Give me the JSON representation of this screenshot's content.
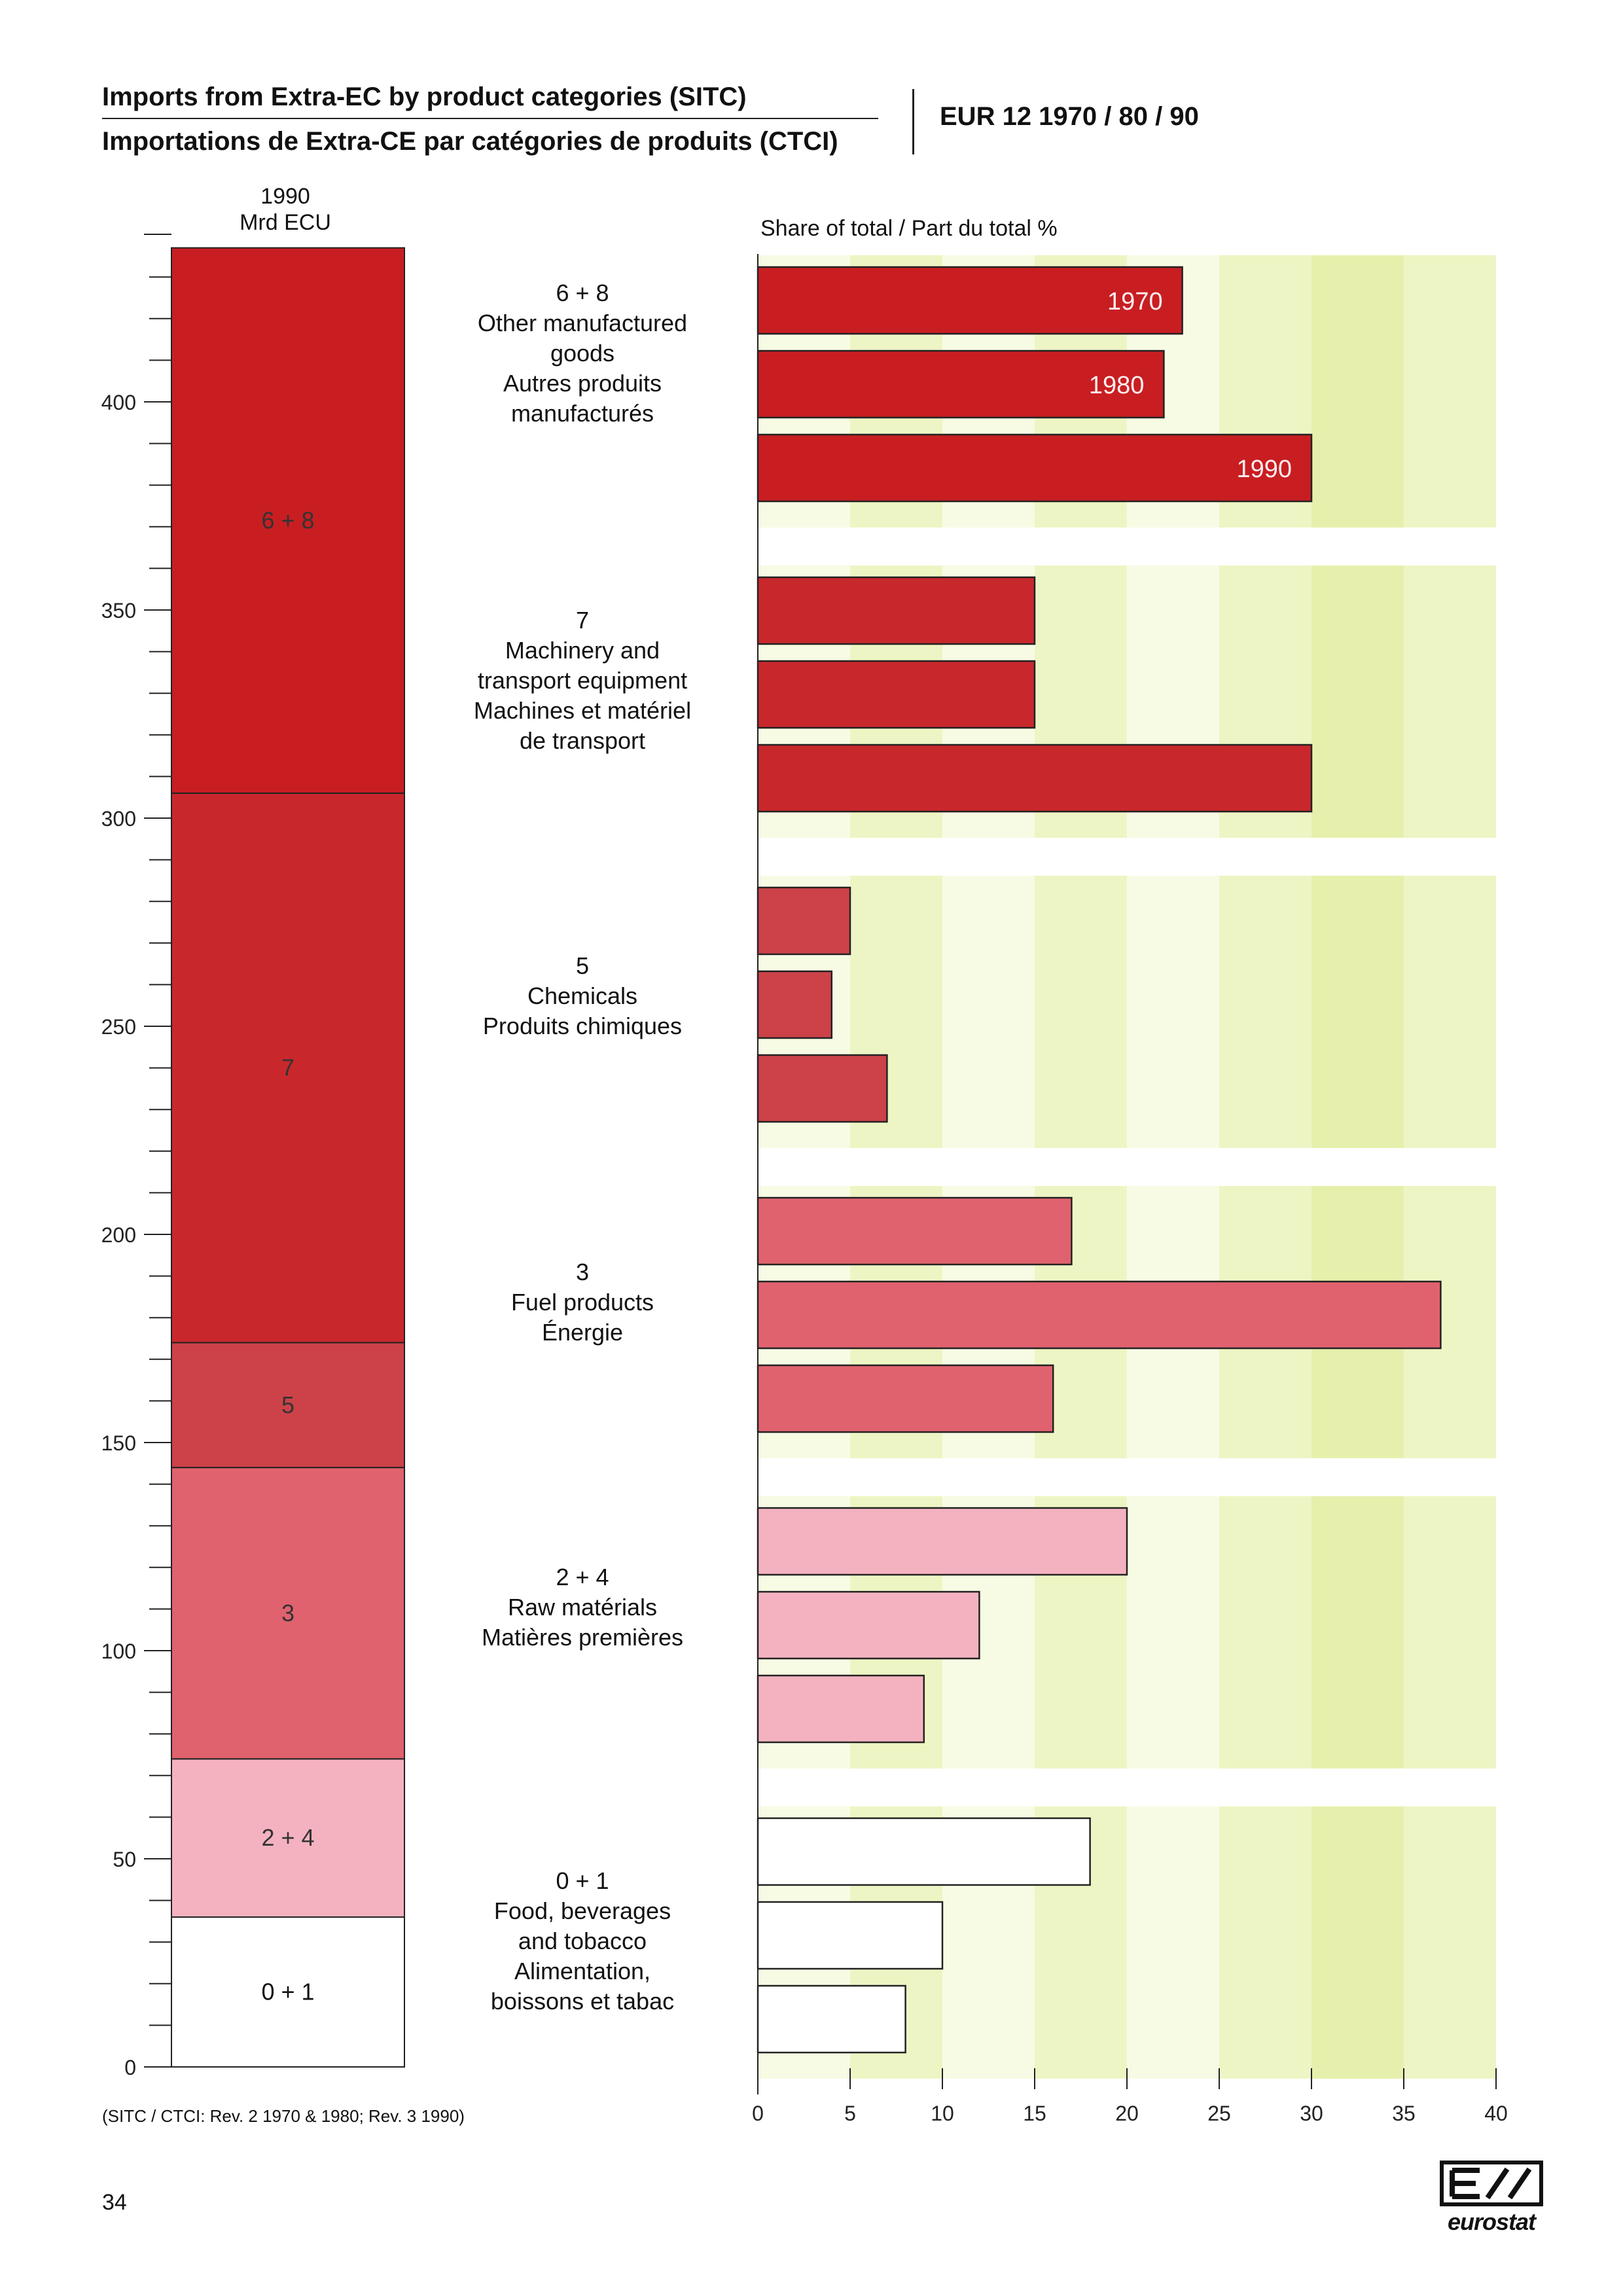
{
  "header": {
    "title_en": "Imports from Extra-EC by product categories (SITC)",
    "title_fr": "Importations de Extra-CE par catégories de produits (CTCI)",
    "series": "EUR 12  1970 / 80 / 90"
  },
  "stack_heading": {
    "line1": "1990",
    "line2": "Mrd ECU"
  },
  "bars_heading": "Share of total / Part du total  %",
  "footnote": "(SITC / CTCI: Rev. 2 1970 & 1980; Rev. 3 1990)",
  "page_number": "34",
  "logo_text": "eurostat",
  "colors": {
    "6+8": "#c81e22",
    "7": "#c8282c",
    "5": "#cc4248",
    "3": "#e0626e",
    "2+4": "#f4b2c0",
    "0+1": "#ffffff",
    "band_light": "#f8fbe4",
    "band_mid": "#eef5c4",
    "band_strong": "#e6f0ac"
  },
  "categories": [
    {
      "key": "6+8",
      "code": "6 + 8",
      "lines": [
        "Other manufactured",
        "goods",
        "Autres produits",
        "manufacturés"
      ]
    },
    {
      "key": "7",
      "code": "7",
      "lines": [
        "Machinery and",
        "transport equipment",
        "Machines et matériel",
        "de transport"
      ]
    },
    {
      "key": "5",
      "code": "5",
      "lines": [
        "Chemicals",
        "Produits chimiques"
      ]
    },
    {
      "key": "3",
      "code": "3",
      "lines": [
        "Fuel products",
        "Énergie"
      ]
    },
    {
      "key": "2+4",
      "code": "2 + 4",
      "lines": [
        "Raw matérials",
        "Matières premières"
      ]
    },
    {
      "key": "0+1",
      "code": "0 + 1",
      "lines": [
        "Food, beverages",
        "and tobacco",
        "Alimentation,",
        "boissons et tabac"
      ]
    }
  ],
  "chart_data": [
    {
      "type": "bar",
      "stacked": true,
      "ylabel": "Mrd ECU",
      "ylim": [
        0,
        437
      ],
      "yticks": [
        0,
        50,
        100,
        150,
        200,
        250,
        300,
        350,
        400
      ],
      "segments": [
        {
          "category": "0 + 1",
          "value": 36
        },
        {
          "category": "2 + 4",
          "value": 38
        },
        {
          "category": "3",
          "value": 70
        },
        {
          "category": "5",
          "value": 30
        },
        {
          "category": "7",
          "value": 132
        },
        {
          "category": "6 + 8",
          "value": 131
        }
      ]
    },
    {
      "type": "bar",
      "orientation": "horizontal",
      "xlabel": "Share of total / Part du total  %",
      "xlim": [
        0,
        40
      ],
      "xticks": [
        0,
        5,
        10,
        15,
        20,
        25,
        30,
        35,
        40
      ],
      "series_labels": [
        "1970",
        "1980",
        "1990"
      ],
      "groups": [
        {
          "category": "6 + 8",
          "values": [
            23,
            22,
            30
          ]
        },
        {
          "category": "7",
          "values": [
            15,
            15,
            30
          ]
        },
        {
          "category": "5",
          "values": [
            5,
            4,
            7
          ]
        },
        {
          "category": "3",
          "values": [
            17,
            37,
            16
          ]
        },
        {
          "category": "2 + 4",
          "values": [
            20,
            12,
            9
          ]
        },
        {
          "category": "0 + 1",
          "values": [
            18,
            10,
            8
          ]
        }
      ]
    }
  ]
}
